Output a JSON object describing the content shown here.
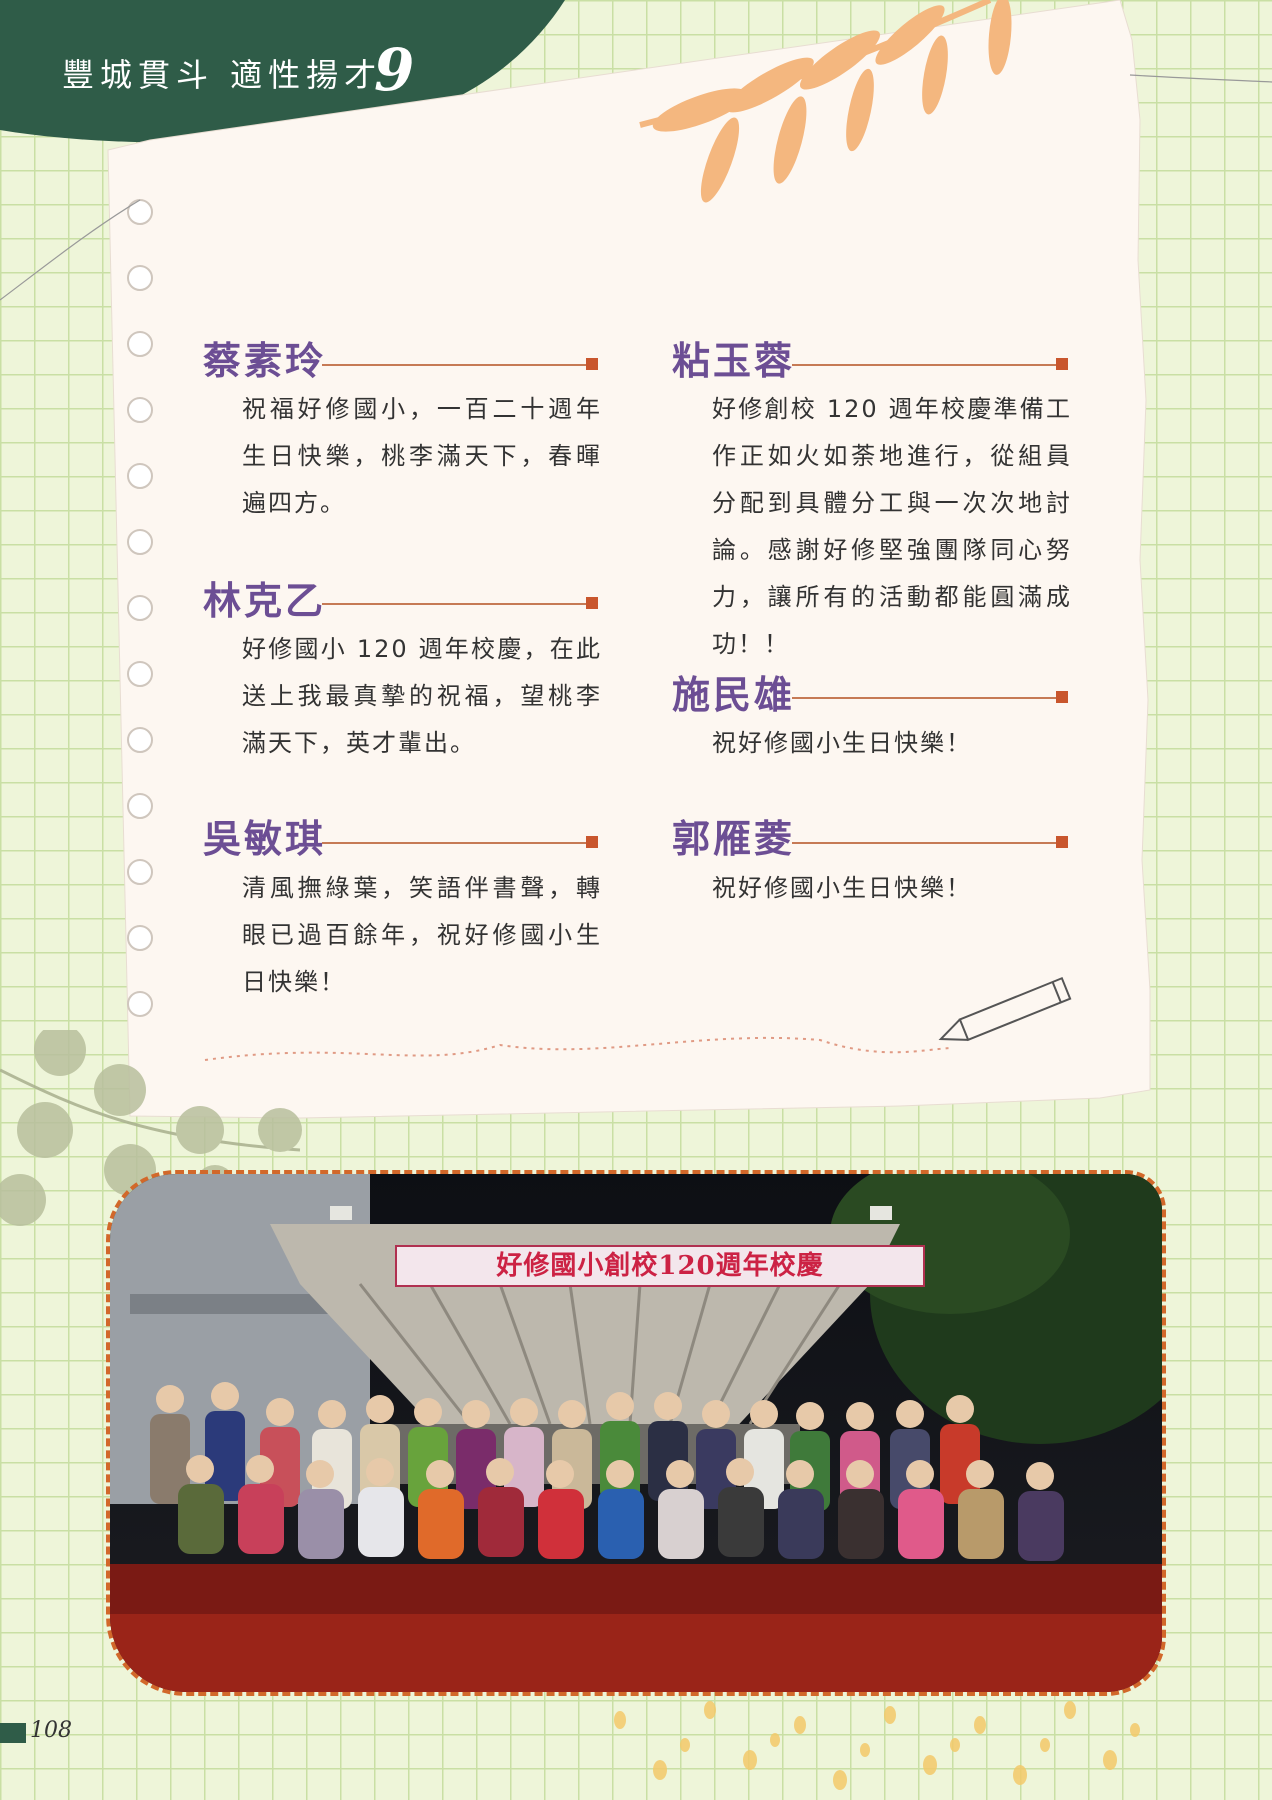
{
  "header": {
    "title": "豐城貫斗 適性揚才",
    "chapter_number": "9"
  },
  "entries": [
    {
      "name": "蔡素玲",
      "text": "祝福好修國小，一百二十週年生日快樂，桃李滿天下，春暉遍四方。"
    },
    {
      "name": "林克乙",
      "text": "好修國小 120 週年校慶，在此送上我最真摯的祝福，望桃李滿天下，英才輩出。"
    },
    {
      "name": "吳敏琪",
      "text": "清風撫綠葉，笑語伴書聲，轉眼已過百餘年，祝好修國小生日快樂！"
    },
    {
      "name": "粘玉蓉",
      "text": "好修創校 120 週年校慶準備工作正如火如荼地進行，從組員分配到具體分工與一次次地討論。感謝好修堅強團隊同心努力，讓所有的活動都能圓滿成功！！"
    },
    {
      "name": "施民雄",
      "text": "祝好修國小生日快樂！"
    },
    {
      "name": "郭雁菱",
      "text": "祝好修國小生日快樂！"
    }
  ],
  "photo": {
    "banner_text": "好修國小創校120週年校慶"
  },
  "footer": {
    "page_number": "108"
  },
  "colors": {
    "header": "#2f5c48",
    "name": "#6c4e94",
    "accent": "#c9562d",
    "grid_bg": "#eef5d9"
  }
}
